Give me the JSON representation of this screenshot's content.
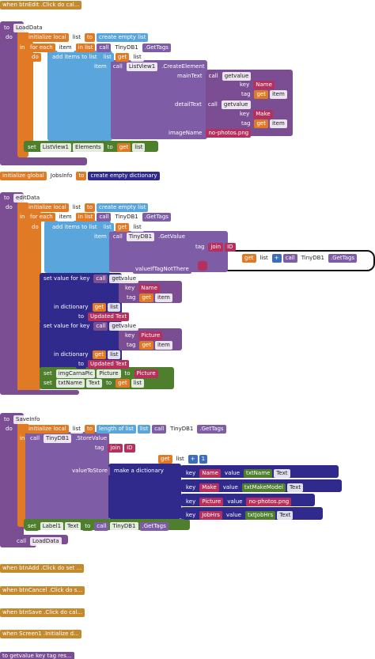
{
  "collapsed_top": "when btnEdit .Click do cal...",
  "load_data": [
    [
      "to",
      "LoadData"
    ],
    [
      "do"
    ],
    [
      "initialize local",
      "list",
      "to",
      "create empty list"
    ],
    [
      "in"
    ],
    [
      "for each",
      "item",
      "in list",
      "call",
      "TinyDB1",
      ".GetTags"
    ],
    [
      "do"
    ],
    [
      "add items to list",
      "list",
      "get",
      "list"
    ],
    [
      "item",
      "call",
      "ListView1",
      ".CreateElement"
    ],
    [
      "mainText",
      "call",
      "getvalue"
    ],
    [
      "key",
      "Name"
    ],
    [
      "tag",
      "get",
      "item"
    ],
    [
      "detailText",
      "call",
      "getvalue"
    ],
    [
      "key",
      "Make"
    ],
    [
      "tag",
      "get",
      "item"
    ],
    [
      "imageName",
      "no-photos.png"
    ],
    [
      "set",
      "ListView1",
      "Elements",
      "to",
      "get",
      "list"
    ]
  ],
  "init_global": [
    [
      "initialize global",
      "JobsInfo",
      "to",
      "create empty dictionary"
    ]
  ],
  "edit_data": [
    [
      "to",
      "editData"
    ],
    [
      "do"
    ],
    [
      "initialize local",
      "list",
      "to",
      "create empty list"
    ],
    [
      "in"
    ],
    [
      "for each",
      "item",
      "in list",
      "call",
      "TinyDB1",
      ".GetTags"
    ],
    [
      "do"
    ],
    [
      "add items to list",
      "list",
      "get",
      "list"
    ],
    [
      "item",
      "call",
      "TinyDB1",
      ".GetValue"
    ],
    [
      "tag",
      "join",
      "ID"
    ],
    [
      "get",
      "list",
      "+",
      "call",
      "TinyDB1",
      ".GetTags"
    ],
    [
      "valueIfTagNotThere"
    ],
    [
      "set value for key",
      "call",
      "getvalue"
    ],
    [
      "key",
      "Name"
    ],
    [
      "tag",
      "get",
      "item"
    ],
    [
      "in dictionary",
      "get",
      "list"
    ],
    [
      "to",
      "Updated Text"
    ],
    [
      "set value for key",
      "call",
      "getvalue"
    ],
    [
      "key",
      "Picture"
    ],
    [
      "tag",
      "get",
      "item"
    ],
    [
      "in dictionary",
      "get",
      "list"
    ],
    [
      "to",
      "Updated Text"
    ],
    [
      "set",
      "imgCarnaPic",
      "Picture",
      "to",
      "Picture"
    ],
    [
      "set",
      "txtName",
      "Text",
      "to",
      "get",
      "list"
    ]
  ],
  "save_info": [
    [
      "to",
      "SaveInfo"
    ],
    [
      "do"
    ],
    [
      "initialize local",
      "list",
      "to",
      "length of list",
      "list",
      "call",
      "TinyDB1",
      ".GetTags"
    ],
    [
      "in"
    ],
    [
      "call",
      "TinyDB1",
      ".StoreValue"
    ],
    [
      "tag",
      "join",
      "ID"
    ],
    [
      "get",
      "list",
      "+",
      "1"
    ],
    [
      "valueToStore",
      "make a dictionary"
    ],
    [
      "key",
      "Name",
      "value",
      "txtName",
      "Text"
    ],
    [
      "key",
      "Make",
      "value",
      "txtMakeModel",
      "Text"
    ],
    [
      "key",
      "Picture",
      "value",
      "no-photos.png"
    ],
    [
      "key",
      "JobHrs",
      "value",
      "txtJobHrs",
      "Text"
    ],
    [
      "set",
      "Label1",
      "Text",
      "to",
      "call",
      "TinyDB1",
      ".GetTags"
    ],
    [
      "call",
      "LoadData"
    ]
  ],
  "collapsed": [
    "when btnAdd .Click do set ...",
    "when btnCancel .Click do s...",
    "when btnSave .Click do cal...",
    "when Screen1 .Initialize d...",
    "to getvalue  key  tag  res..."
  ]
}
